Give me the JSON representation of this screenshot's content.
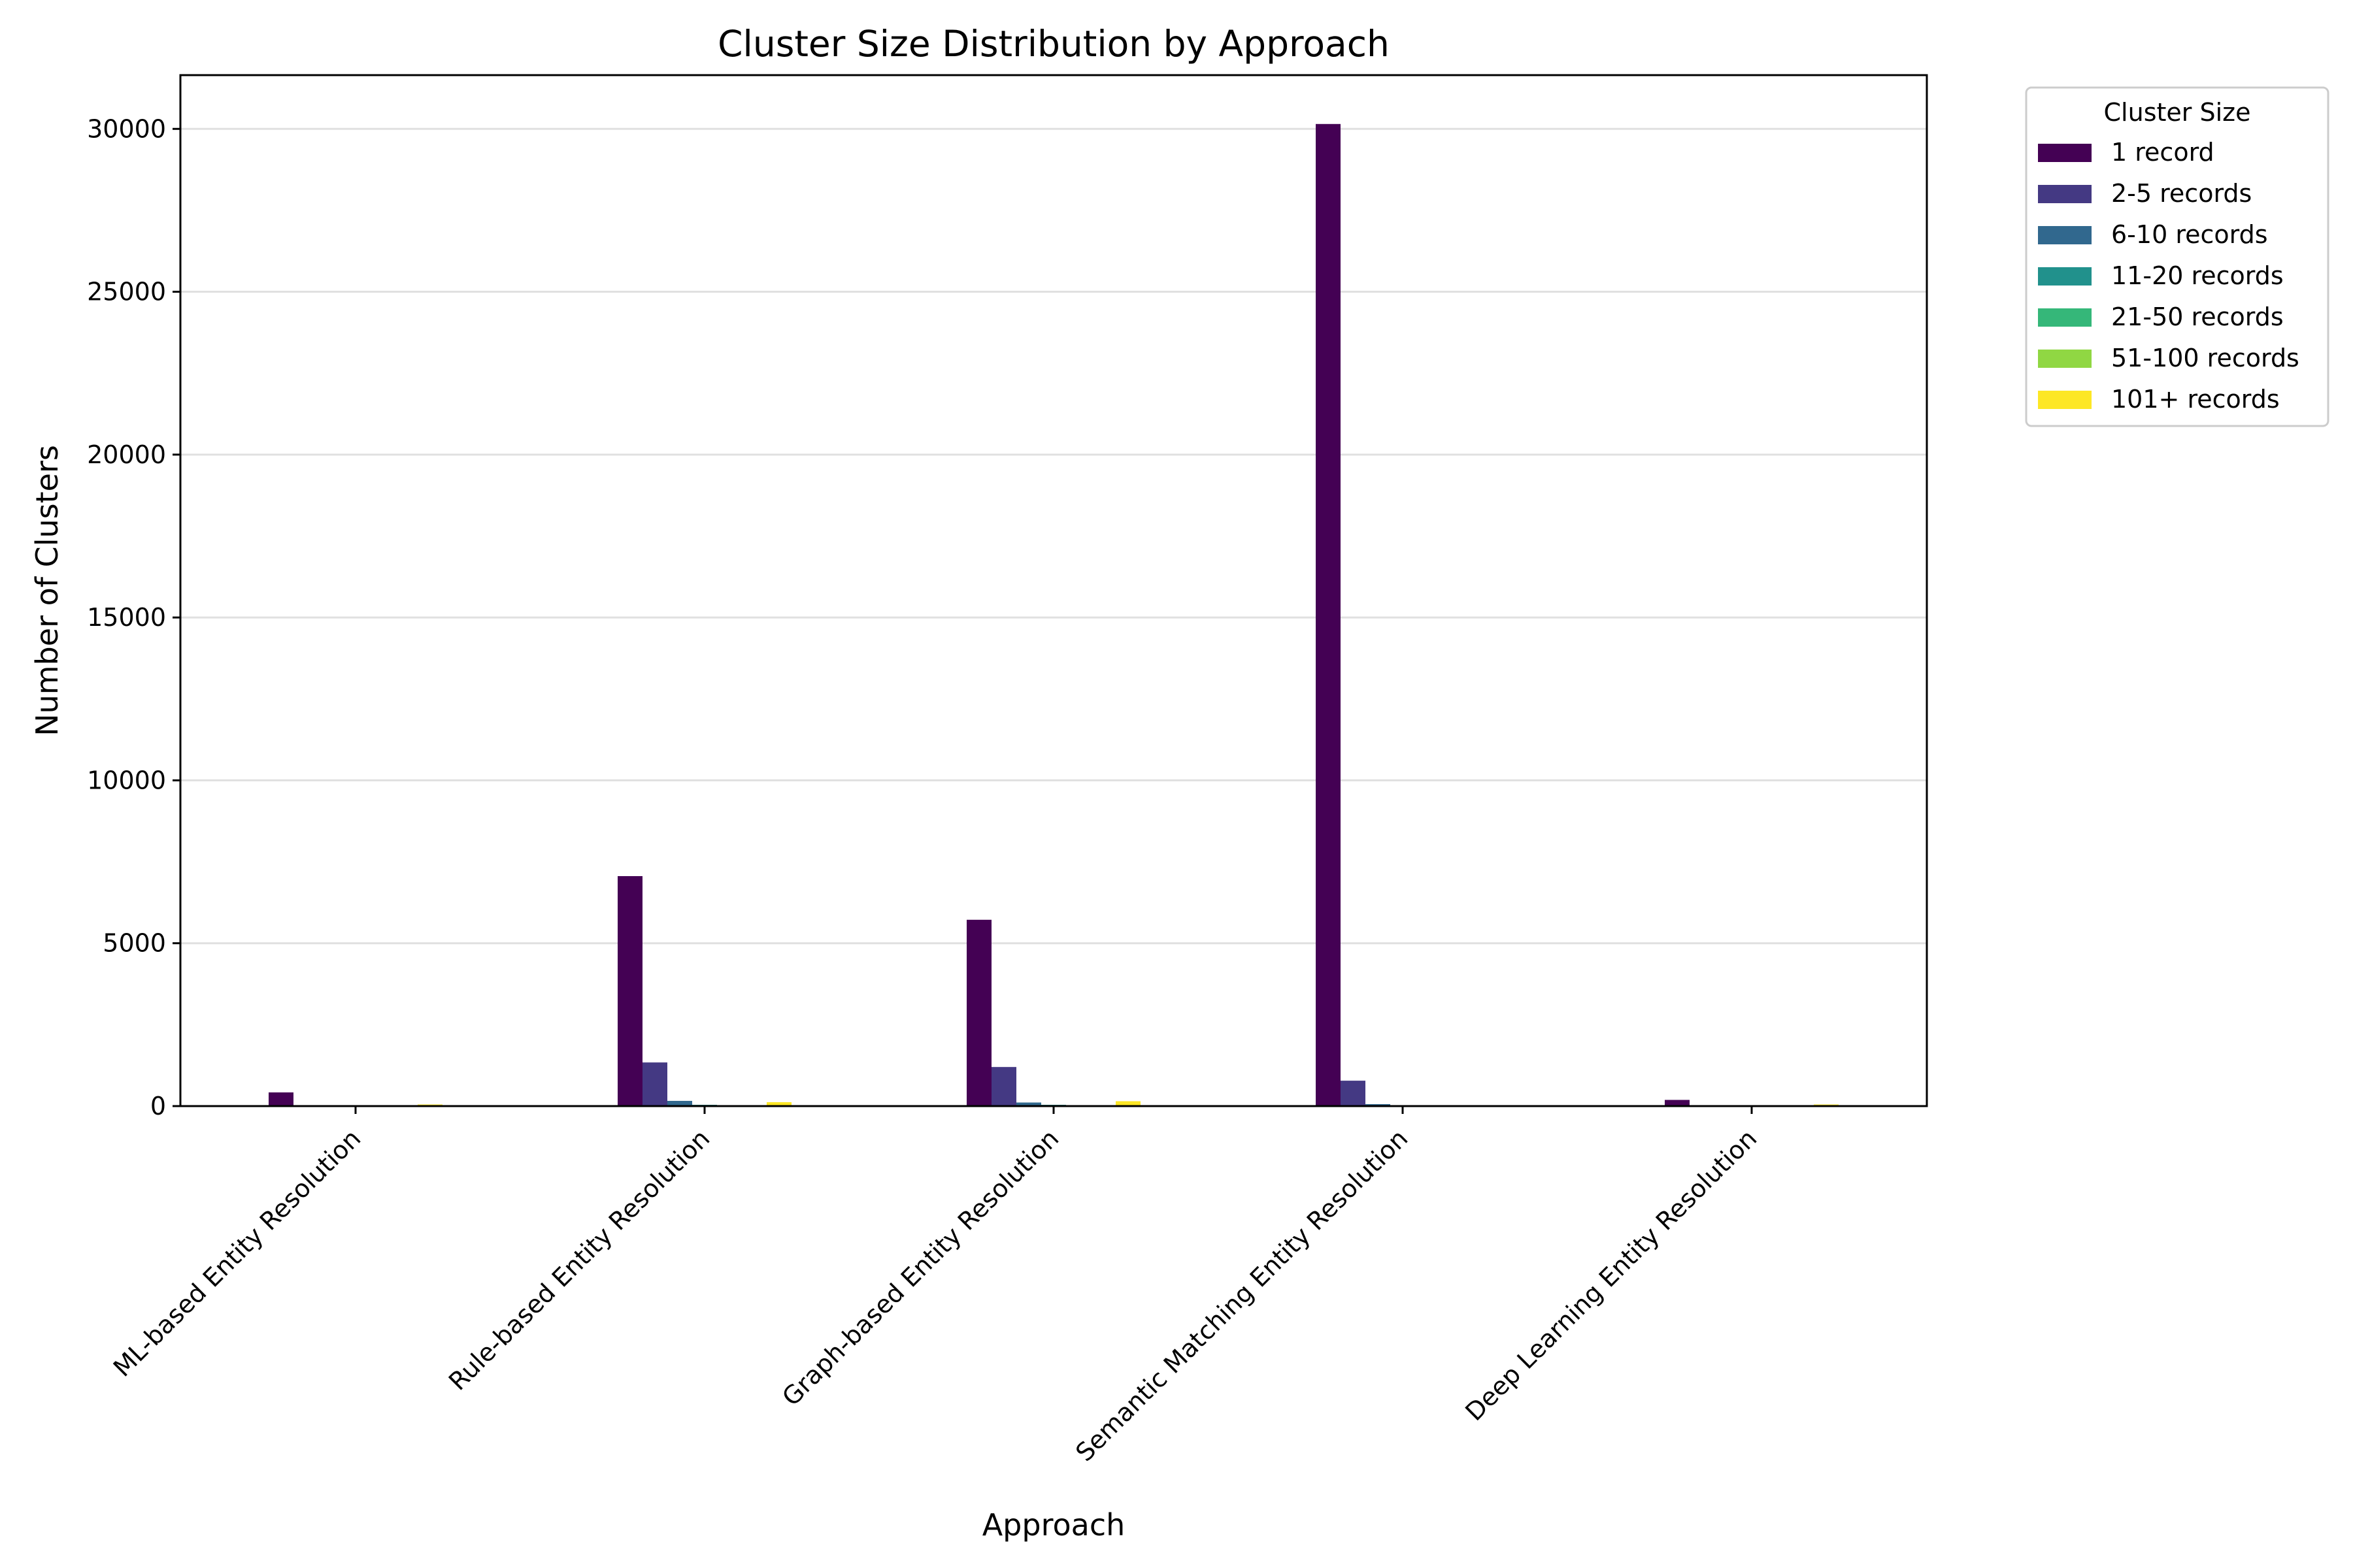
{
  "chart_data": {
    "type": "bar",
    "title": "Cluster Size Distribution by Approach",
    "xlabel": "Approach",
    "ylabel": "Number of Clusters",
    "categories": [
      "ML-based Entity Resolution",
      "Rule-based Entity Resolution",
      "Graph-based Entity Resolution",
      "Semantic Matching Entity Resolution",
      "Deep Learning Entity Resolution"
    ],
    "series": [
      {
        "name": "1 record",
        "color": "#440154",
        "values": [
          420,
          7060,
          5720,
          30150,
          190
        ]
      },
      {
        "name": "2-5 records",
        "color": "#443983",
        "values": [
          25,
          1340,
          1200,
          780,
          20
        ]
      },
      {
        "name": "6-10 records",
        "color": "#31688e",
        "values": [
          5,
          160,
          110,
          60,
          5
        ]
      },
      {
        "name": "11-20 records",
        "color": "#21918c",
        "values": [
          5,
          40,
          40,
          10,
          5
        ]
      },
      {
        "name": "21-50 records",
        "color": "#35b779",
        "values": [
          5,
          20,
          20,
          5,
          5
        ]
      },
      {
        "name": "51-100 records",
        "color": "#90d743",
        "values": [
          10,
          20,
          30,
          5,
          10
        ]
      },
      {
        "name": "101+ records",
        "color": "#fde725",
        "values": [
          50,
          120,
          150,
          5,
          50
        ]
      }
    ],
    "ylim": [
      0,
      31650
    ],
    "yticks": [
      0,
      5000,
      10000,
      15000,
      20000,
      25000,
      30000
    ],
    "ytick_labels": [
      "0",
      "5000",
      "10000",
      "15000",
      "20000",
      "25000",
      "30000"
    ],
    "grid": "y",
    "legend": {
      "title": "Cluster Size",
      "placement": "outside-top-right"
    }
  }
}
